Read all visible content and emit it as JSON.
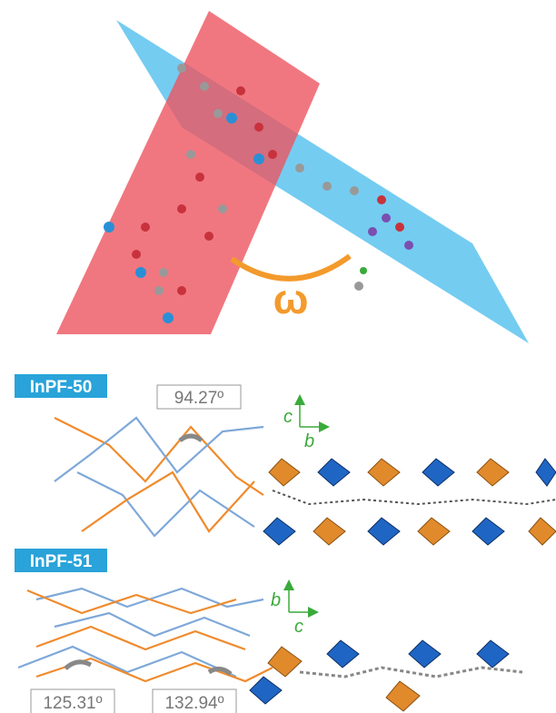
{
  "top_panel": {
    "angle_symbol": "ω"
  },
  "panels": [
    {
      "label": "InPF-50",
      "angles": [
        "94.27º"
      ],
      "axes": {
        "vertical": "c",
        "horizontal": "b"
      }
    },
    {
      "label": "InPF-51",
      "angles": [
        "125.31º",
        "132.94º"
      ],
      "axes": {
        "vertical": "b",
        "horizontal": "c"
      }
    }
  ]
}
